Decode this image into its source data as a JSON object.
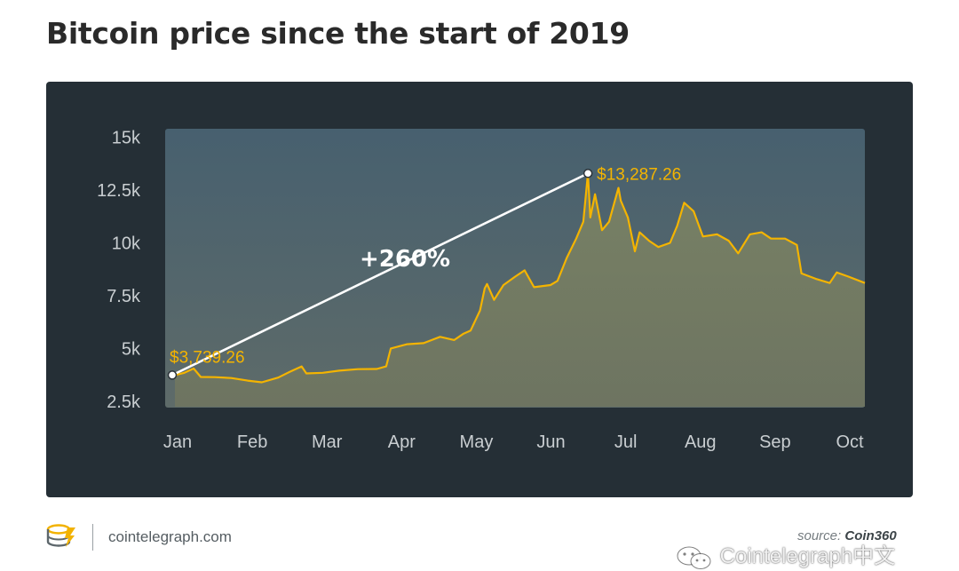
{
  "title": "Bitcoin price since the start of 2019",
  "footer": {
    "site": "cointelegraph.com",
    "source_prefix": "source:",
    "source_name": "Coin360"
  },
  "watermark": "Cointelegraph中文",
  "colors": {
    "panel": "#252f36",
    "plot_bg_top": "#47606f",
    "plot_bg_bottom": "#5e6b69",
    "line": "#f4b400",
    "annotation": "#ffffff"
  },
  "chart_data": {
    "type": "area",
    "title": "Bitcoin price since the start of 2019",
    "x_axis": {
      "ticks": [
        "Jan",
        "Feb",
        "Mar",
        "Apr",
        "May",
        "Jun",
        "Jul",
        "Aug",
        "Sep",
        "Oct"
      ],
      "range": [
        "2019-01-01",
        "2019-10-22"
      ]
    },
    "y_axis": {
      "ticks": [
        2500,
        5000,
        7500,
        10000,
        12500,
        15000
      ],
      "tick_labels": [
        "2.5k",
        "5k",
        "7.5k",
        "10k",
        "12.5k",
        "15k"
      ],
      "ylim": [
        2200,
        15400
      ]
    },
    "grid": false,
    "series": [
      {
        "points": [
          [
            "2019-01-01",
            3739
          ],
          [
            "2019-01-05",
            3850
          ],
          [
            "2019-01-09",
            4050
          ],
          [
            "2019-01-12",
            3650
          ],
          [
            "2019-01-18",
            3640
          ],
          [
            "2019-01-25",
            3600
          ],
          [
            "2019-02-01",
            3480
          ],
          [
            "2019-02-07",
            3400
          ],
          [
            "2019-02-14",
            3620
          ],
          [
            "2019-02-19",
            3900
          ],
          [
            "2019-02-24",
            4150
          ],
          [
            "2019-02-26",
            3820
          ],
          [
            "2019-03-05",
            3850
          ],
          [
            "2019-03-12",
            3950
          ],
          [
            "2019-03-20",
            4020
          ],
          [
            "2019-03-28",
            4030
          ],
          [
            "2019-04-01",
            4150
          ],
          [
            "2019-04-03",
            5000
          ],
          [
            "2019-04-10",
            5200
          ],
          [
            "2019-04-17",
            5250
          ],
          [
            "2019-04-24",
            5550
          ],
          [
            "2019-04-30",
            5400
          ],
          [
            "2019-05-04",
            5700
          ],
          [
            "2019-05-07",
            5850
          ],
          [
            "2019-05-11",
            6800
          ],
          [
            "2019-05-13",
            7850
          ],
          [
            "2019-05-14",
            8050
          ],
          [
            "2019-05-17",
            7300
          ],
          [
            "2019-05-21",
            8000
          ],
          [
            "2019-05-26",
            8400
          ],
          [
            "2019-05-30",
            8700
          ],
          [
            "2019-06-03",
            7900
          ],
          [
            "2019-06-10",
            8000
          ],
          [
            "2019-06-13",
            8200
          ],
          [
            "2019-06-17",
            9300
          ],
          [
            "2019-06-21",
            10200
          ],
          [
            "2019-06-24",
            11000
          ],
          [
            "2019-06-26",
            13287
          ],
          [
            "2019-06-27",
            11200
          ],
          [
            "2019-06-29",
            12300
          ],
          [
            "2019-07-02",
            10600
          ],
          [
            "2019-07-05",
            11000
          ],
          [
            "2019-07-09",
            12600
          ],
          [
            "2019-07-10",
            12000
          ],
          [
            "2019-07-13",
            11200
          ],
          [
            "2019-07-16",
            9600
          ],
          [
            "2019-07-18",
            10500
          ],
          [
            "2019-07-22",
            10100
          ],
          [
            "2019-07-26",
            9800
          ],
          [
            "2019-07-31",
            10000
          ],
          [
            "2019-08-03",
            10800
          ],
          [
            "2019-08-06",
            11900
          ],
          [
            "2019-08-10",
            11500
          ],
          [
            "2019-08-14",
            10300
          ],
          [
            "2019-08-20",
            10400
          ],
          [
            "2019-08-25",
            10100
          ],
          [
            "2019-08-29",
            9500
          ],
          [
            "2019-09-03",
            10400
          ],
          [
            "2019-09-08",
            10500
          ],
          [
            "2019-09-12",
            10200
          ],
          [
            "2019-09-18",
            10200
          ],
          [
            "2019-09-23",
            9900
          ],
          [
            "2019-09-25",
            8550
          ],
          [
            "2019-10-01",
            8300
          ],
          [
            "2019-10-07",
            8100
          ],
          [
            "2019-10-10",
            8600
          ],
          [
            "2019-10-15",
            8400
          ],
          [
            "2019-10-22",
            8100
          ]
        ]
      }
    ],
    "annotations": [
      {
        "date": "2019-01-01",
        "value": 3739.26,
        "label": "$3,739.26"
      },
      {
        "date": "2019-06-26",
        "value": 13287.26,
        "label": "$13,287.26"
      }
    ],
    "change_label": "+260%"
  }
}
